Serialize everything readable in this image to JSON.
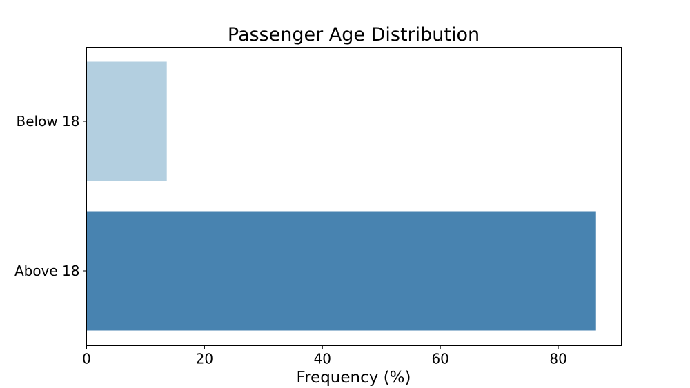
{
  "chart_data": {
    "type": "bar",
    "orientation": "horizontal",
    "title": "Passenger Age Distribution",
    "xlabel": "Frequency (%)",
    "ylabel": "",
    "categories": [
      "Below 18",
      "Above 18"
    ],
    "values": [
      13.6,
      86.4
    ],
    "colors": [
      "#b3cfe0",
      "#4883b0"
    ],
    "xlim": [
      0,
      90.7
    ],
    "xticks": [
      0,
      20,
      40,
      60,
      80
    ],
    "grid": false,
    "legend": "none"
  }
}
